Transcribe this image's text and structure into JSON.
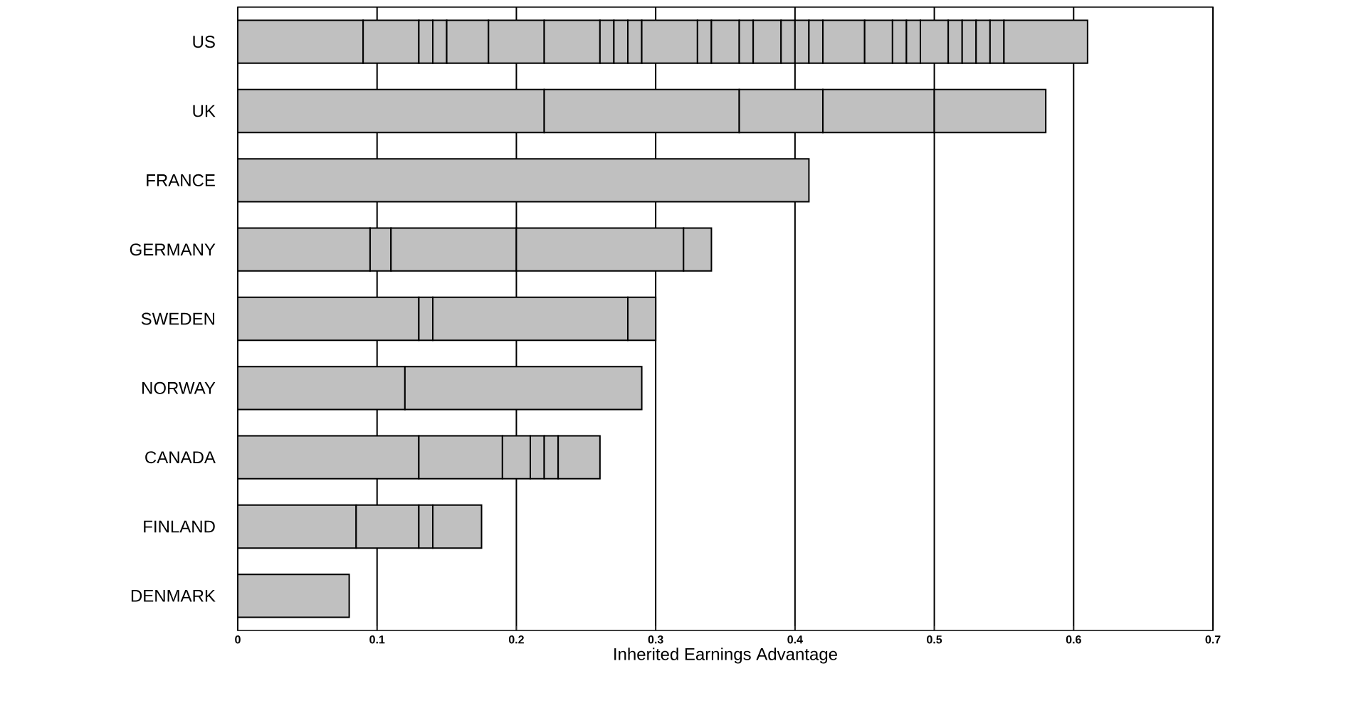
{
  "chart_data": {
    "type": "bar",
    "orientation": "horizontal",
    "stacked": true,
    "xlabel": "Inherited Earnings Advantage",
    "categories": [
      "US",
      "UK",
      "FRANCE",
      "GERMANY",
      "SWEDEN",
      "NORWAY",
      "CANADA",
      "FINLAND",
      "DENMARK"
    ],
    "series": [
      {
        "color": "#c0c0c0",
        "values": [
          0.09,
          0.22,
          0.41,
          0.095,
          0.13,
          0.12,
          0.13,
          0.085,
          0.08
        ]
      },
      {
        "color": "#c0c0c0",
        "values": [
          0.04,
          0.14,
          null,
          0.015,
          0.01,
          0.17,
          0.06,
          0.045,
          null
        ]
      },
      {
        "color": "#c0c0c0",
        "values": [
          0.01,
          0.06,
          null,
          0.09,
          0.14,
          null,
          0.02,
          0.01,
          null
        ]
      },
      {
        "color": "#c0c0c0",
        "values": [
          0.01,
          0.08,
          null,
          0.12,
          0.02,
          null,
          0.01,
          0.035,
          null
        ]
      },
      {
        "color": "#c0c0c0",
        "values": [
          0.03,
          0.08,
          null,
          0.02,
          null,
          null,
          0.01,
          null,
          null
        ]
      },
      {
        "color": "#c0c0c0",
        "values": [
          0.04,
          null,
          null,
          null,
          null,
          null,
          0.03,
          null,
          null
        ]
      },
      {
        "color": "#c0c0c0",
        "values": [
          0.04,
          null,
          null,
          null,
          null,
          null,
          null,
          null,
          null
        ]
      },
      {
        "color": "#c0c0c0",
        "values": [
          0.01,
          null,
          null,
          null,
          null,
          null,
          null,
          null,
          null
        ]
      },
      {
        "color": "#c0c0c0",
        "values": [
          0.01,
          null,
          null,
          null,
          null,
          null,
          null,
          null,
          null
        ]
      },
      {
        "color": "#c0c0c0",
        "values": [
          0.01,
          null,
          null,
          null,
          null,
          null,
          null,
          null,
          null
        ]
      },
      {
        "color": "#c0c0c0",
        "values": [
          0.04,
          null,
          null,
          null,
          null,
          null,
          null,
          null,
          null
        ]
      },
      {
        "color": "#c0c0c0",
        "values": [
          0.01,
          null,
          null,
          null,
          null,
          null,
          null,
          null,
          null
        ]
      },
      {
        "color": "#c0c0c0",
        "values": [
          0.02,
          null,
          null,
          null,
          null,
          null,
          null,
          null,
          null
        ]
      },
      {
        "color": "#c0c0c0",
        "values": [
          0.01,
          null,
          null,
          null,
          null,
          null,
          null,
          null,
          null
        ]
      },
      {
        "color": "#c0c0c0",
        "values": [
          0.02,
          null,
          null,
          null,
          null,
          null,
          null,
          null,
          null
        ]
      },
      {
        "color": "#c0c0c0",
        "values": [
          0.01,
          null,
          null,
          null,
          null,
          null,
          null,
          null,
          null
        ]
      },
      {
        "color": "#c0c0c0",
        "values": [
          0.01,
          null,
          null,
          null,
          null,
          null,
          null,
          null,
          null
        ]
      },
      {
        "color": "#c0c0c0",
        "values": [
          0.01,
          null,
          null,
          null,
          null,
          null,
          null,
          null,
          null
        ]
      },
      {
        "color": "#c0c0c0",
        "values": [
          0.03,
          null,
          null,
          null,
          null,
          null,
          null,
          null,
          null
        ]
      },
      {
        "color": "#c0c0c0",
        "values": [
          0.02,
          null,
          null,
          null,
          null,
          null,
          null,
          null,
          null
        ]
      },
      {
        "color": "#c0c0c0",
        "values": [
          0.01,
          null,
          null,
          null,
          null,
          null,
          null,
          null,
          null
        ]
      },
      {
        "color": "#c0c0c0",
        "values": [
          0.01,
          null,
          null,
          null,
          null,
          null,
          null,
          null,
          null
        ]
      },
      {
        "color": "#c0c0c0",
        "values": [
          0.02,
          null,
          null,
          null,
          null,
          null,
          null,
          null,
          null
        ]
      },
      {
        "color": "#c0c0c0",
        "values": [
          0.01,
          null,
          null,
          null,
          null,
          null,
          null,
          null,
          null
        ]
      },
      {
        "color": "#c0c0c0",
        "values": [
          0.01,
          null,
          null,
          null,
          null,
          null,
          null,
          null,
          null
        ]
      },
      {
        "color": "#c0c0c0",
        "values": [
          0.01,
          null,
          null,
          null,
          null,
          null,
          null,
          null,
          null
        ]
      },
      {
        "color": "#c0c0c0",
        "values": [
          0.01,
          null,
          null,
          null,
          null,
          null,
          null,
          null,
          null
        ]
      },
      {
        "color": "#c0c0c0",
        "values": [
          0.06,
          null,
          null,
          null,
          null,
          null,
          null,
          null,
          null
        ]
      }
    ],
    "xlim": [
      0,
      0.7
    ],
    "xticks": [
      0,
      0.1,
      0.2,
      0.3,
      0.4,
      0.5,
      0.6,
      0.7
    ],
    "grid": "x"
  }
}
